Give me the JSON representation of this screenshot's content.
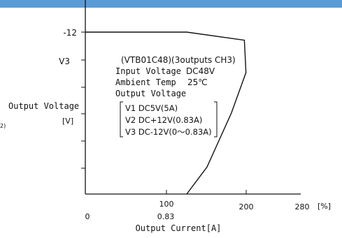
{
  "header_bar": {
    "color": "#5b9bd5"
  },
  "chart_data": {
    "type": "line",
    "title": "",
    "xlabel": "Output Current[A]",
    "ylabel": "Output Voltage",
    "ylabel_unit": "[V]",
    "left_edge_fragment": "2)",
    "x_unit": "[%]",
    "x_ticks_percent": [
      "100",
      "200",
      "280"
    ],
    "x_ticks_current": [
      "0",
      "0.83"
    ],
    "y_ticks": [
      "-12",
      "V3"
    ],
    "grid": false,
    "series": [
      {
        "name": "",
        "x_percent": [
          0,
          100,
          125,
          196,
          198,
          180,
          150,
          125
        ],
        "y_voltage": [
          -12,
          -12,
          -12,
          -11.4,
          -9,
          -6,
          -2,
          0
        ]
      }
    ],
    "annotation": {
      "model": "(VTB01C48)(3outputs CH3)",
      "input_label": "Input Voltage",
      "input_value": "DC48V",
      "temp_label": "Ambient Temp",
      "temp_value": "25℃",
      "outputs_label": "Output Voltage",
      "outputs": [
        "V1 DC5V(5A)",
        "V2 DC+12V(0.83A)",
        "V3 DC-12V(0～0.83A)"
      ]
    }
  }
}
